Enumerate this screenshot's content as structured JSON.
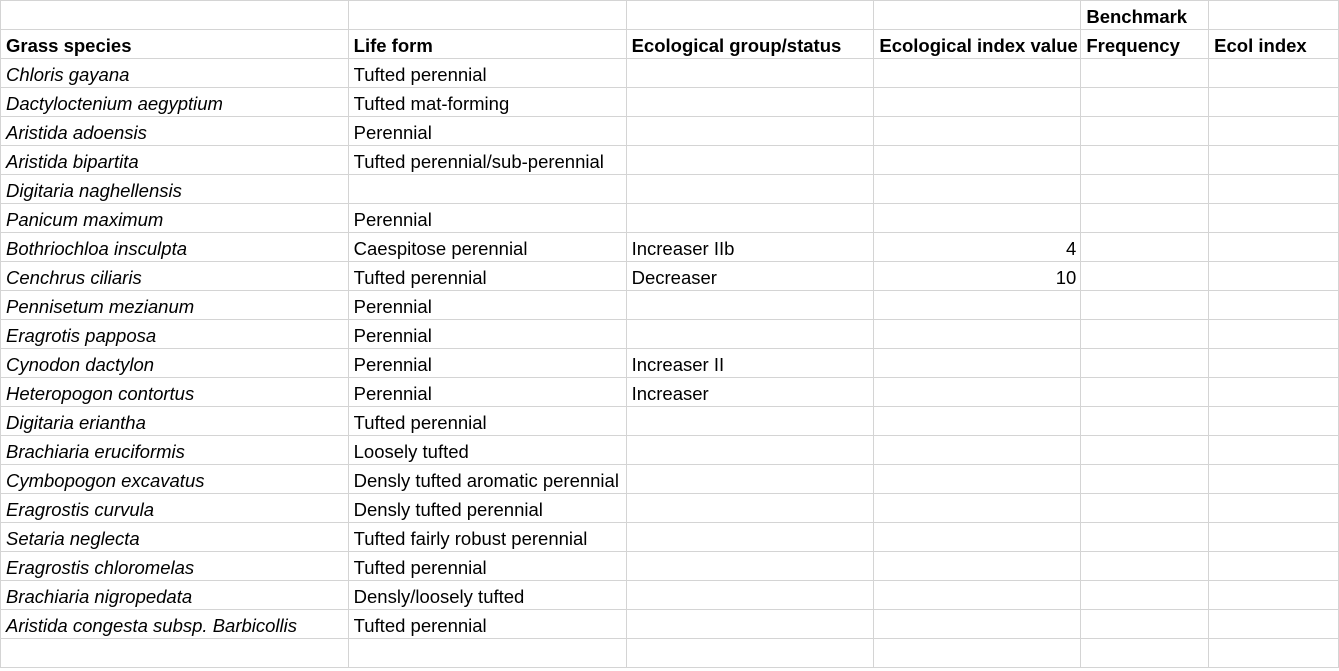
{
  "headers": {
    "super": {
      "benchmark": "Benchmark"
    },
    "grass_species": "Grass species",
    "life_form": "Life form",
    "ecological_group": "Ecological group/status",
    "ecological_index_value": "Ecological index value",
    "frequency": "Frequency",
    "ecol_index": "Ecol index"
  },
  "rows": [
    {
      "species": "Chloris gayana",
      "life_form": "Tufted perennial",
      "group": "",
      "index": ""
    },
    {
      "species": "Dactyloctenium aegyptium",
      "life_form": "Tufted mat-forming",
      "group": "",
      "index": ""
    },
    {
      "species": "Aristida adoensis",
      "life_form": "Perennial",
      "group": "",
      "index": ""
    },
    {
      "species": "Aristida bipartita",
      "life_form": "Tufted perennial/sub-perennial",
      "group": "",
      "index": ""
    },
    {
      "species": "Digitaria naghellensis",
      "life_form": "",
      "group": "",
      "index": ""
    },
    {
      "species": "Panicum maximum",
      "life_form": "Perennial",
      "group": "",
      "index": ""
    },
    {
      "species": "Bothriochloa insculpta",
      "life_form": "Caespitose perennial",
      "group": "Increaser IIb",
      "index": "4"
    },
    {
      "species": "Cenchrus ciliaris",
      "life_form": "Tufted perennial",
      "group": "Decreaser",
      "index": "10"
    },
    {
      "species": "Pennisetum mezianum",
      "life_form": "Perennial",
      "group": "",
      "index": ""
    },
    {
      "species": "Eragrotis papposa",
      "life_form": "Perennial",
      "group": "",
      "index": ""
    },
    {
      "species": "Cynodon dactylon",
      "life_form": "Perennial",
      "group": "Increaser II",
      "index": ""
    },
    {
      "species": "Heteropogon contortus",
      "life_form": "Perennial",
      "group": "Increaser",
      "index": ""
    },
    {
      "species": "Digitaria eriantha",
      "life_form": "Tufted perennial",
      "group": "",
      "index": ""
    },
    {
      "species": "Brachiaria eruciformis",
      "life_form": "Loosely tufted",
      "group": "",
      "index": ""
    },
    {
      "species": "Cymbopogon excavatus",
      "life_form": "Densly tufted aromatic perennial",
      "group": "",
      "index": ""
    },
    {
      "species": "Eragrostis curvula",
      "life_form": "Densly tufted perennial",
      "group": "",
      "index": ""
    },
    {
      "species": "Setaria neglecta",
      "life_form": "Tufted fairly robust perennial",
      "group": "",
      "index": ""
    },
    {
      "species": "Eragrostis chloromelas",
      "life_form": "Tufted perennial",
      "group": "",
      "index": ""
    },
    {
      "species": "Brachiaria nigropedata",
      "life_form": "Densly/loosely tufted",
      "group": "",
      "index": ""
    },
    {
      "species": "Aristida congesta subsp. Barbicollis",
      "life_form": "Tufted perennial",
      "group": "",
      "index": ""
    }
  ]
}
